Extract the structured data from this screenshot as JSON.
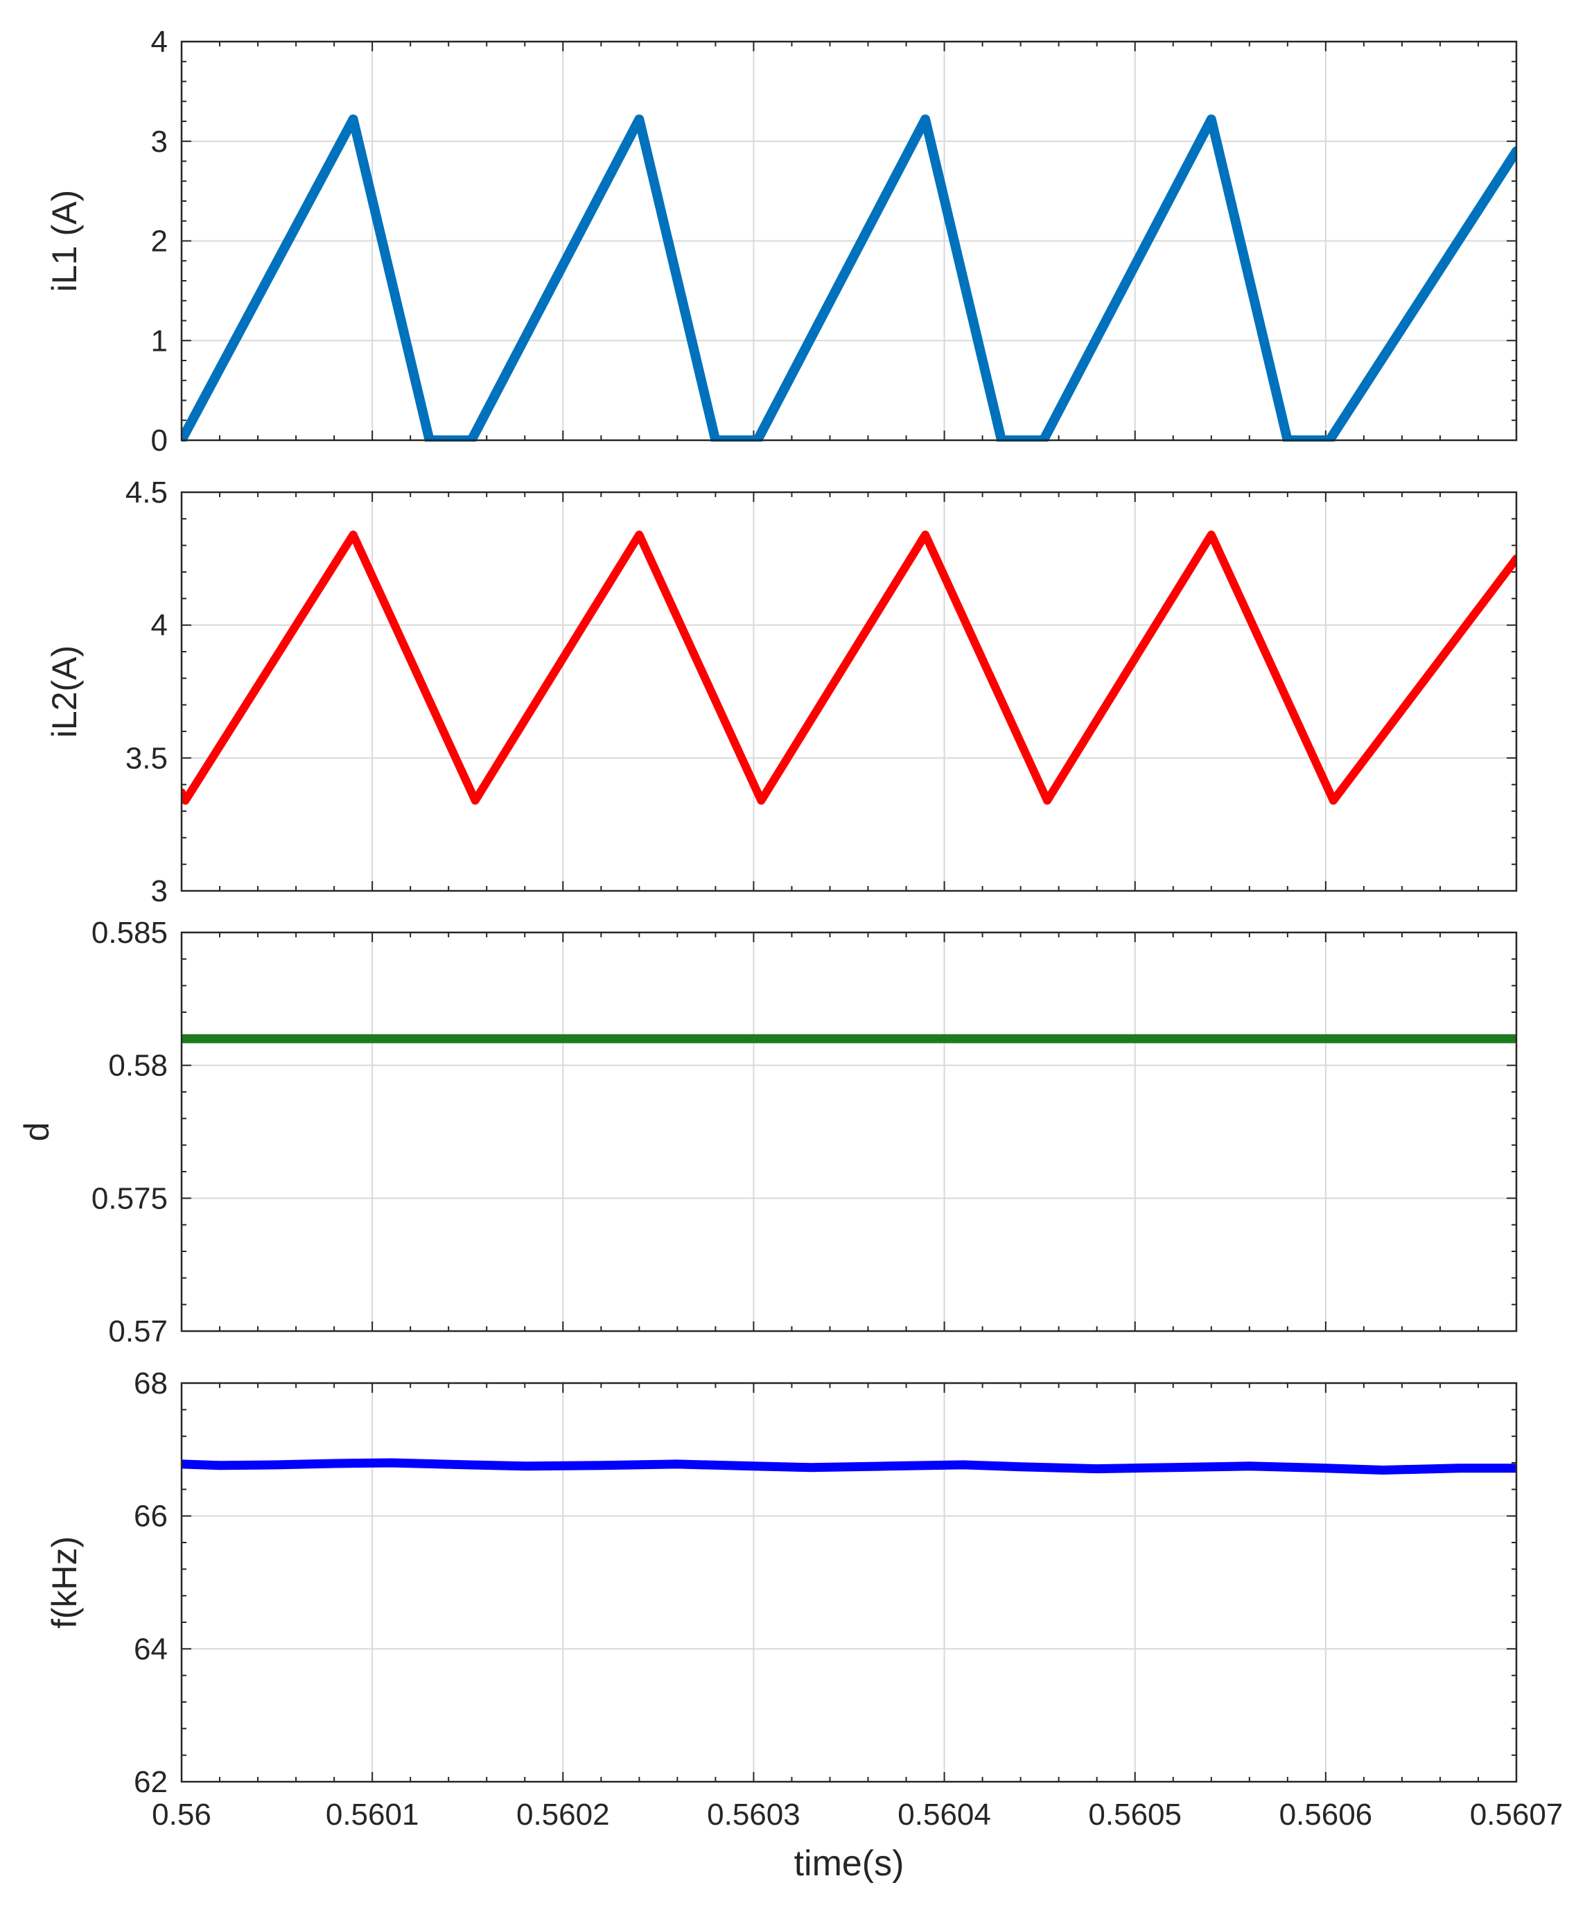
{
  "chart_data": [
    {
      "type": "line",
      "ylabel": "iL1 (A)",
      "xlabel": "",
      "xlim": [
        0.56,
        0.5607
      ],
      "ylim": [
        0,
        4
      ],
      "yticks": [
        0,
        1,
        2,
        3,
        4
      ],
      "ytick_labels": [
        "0",
        "1",
        "2",
        "3",
        "4"
      ],
      "grid": true,
      "series": [
        {
          "color": "#0072BD",
          "x": [
            0.56,
            0.56009,
            0.56013,
            0.560152,
            0.56024,
            0.56028,
            0.560302,
            0.56039,
            0.56043,
            0.560452,
            0.56054,
            0.56058,
            0.560602,
            0.5607
          ],
          "y": [
            0,
            3.22,
            0,
            0,
            3.22,
            0,
            0,
            3.22,
            0,
            0,
            3.22,
            0,
            0,
            2.9
          ]
        }
      ]
    },
    {
      "type": "line",
      "ylabel": "iL2(A)",
      "xlabel": "",
      "xlim": [
        0.56,
        0.5607
      ],
      "ylim": [
        3,
        4.5
      ],
      "yticks": [
        3,
        3.5,
        4,
        4.5
      ],
      "ytick_labels": [
        "3",
        "3.5",
        "4",
        "4.5"
      ],
      "grid": true,
      "series": [
        {
          "color": "#FF0000",
          "x": [
            0.56,
            0.560002,
            0.56009,
            0.560154,
            0.56024,
            0.560304,
            0.56039,
            0.560454,
            0.56054,
            0.560604,
            0.5607
          ],
          "y": [
            3.37,
            3.34,
            4.34,
            3.34,
            4.34,
            3.34,
            4.34,
            3.34,
            4.34,
            3.34,
            4.25
          ]
        }
      ]
    },
    {
      "type": "line",
      "ylabel": "d",
      "xlabel": "",
      "xlim": [
        0.56,
        0.5607
      ],
      "ylim": [
        0.57,
        0.585
      ],
      "yticks": [
        0.57,
        0.575,
        0.58,
        0.585
      ],
      "ytick_labels": [
        "0.57",
        "0.575",
        "0.58",
        "0.585"
      ],
      "grid": true,
      "series": [
        {
          "color": "#1E7A1E",
          "x": [
            0.56,
            0.5607
          ],
          "y": [
            0.581,
            0.581
          ]
        }
      ]
    },
    {
      "type": "line",
      "ylabel": "f(kHz)",
      "xlabel": "time(s)",
      "xlim": [
        0.56,
        0.5607
      ],
      "ylim": [
        62,
        68
      ],
      "yticks": [
        62,
        64,
        66,
        68
      ],
      "ytick_labels": [
        "62",
        "64",
        "66",
        "68"
      ],
      "xticks": [
        0.56,
        0.5601,
        0.5602,
        0.5603,
        0.5604,
        0.5605,
        0.5606,
        0.5607
      ],
      "xtick_labels": [
        "0.56",
        "0.5601",
        "0.5602",
        "0.5603",
        "0.5604",
        "0.5605",
        "0.5606",
        "0.5607"
      ],
      "grid": true,
      "series": [
        {
          "color": "#0000FF",
          "x": [
            0.56,
            0.56002,
            0.56005,
            0.56008,
            0.56011,
            0.56015,
            0.56018,
            0.56022,
            0.56026,
            0.5603,
            0.56033,
            0.56037,
            0.56041,
            0.56044,
            0.56048,
            0.56052,
            0.56056,
            0.5606,
            0.56063,
            0.56067,
            0.5607
          ],
          "y": [
            66.78,
            66.76,
            66.77,
            66.79,
            66.8,
            66.77,
            66.75,
            66.76,
            66.78,
            66.75,
            66.73,
            66.75,
            66.77,
            66.74,
            66.71,
            66.73,
            66.75,
            66.72,
            66.69,
            66.72,
            66.72
          ]
        }
      ]
    }
  ]
}
